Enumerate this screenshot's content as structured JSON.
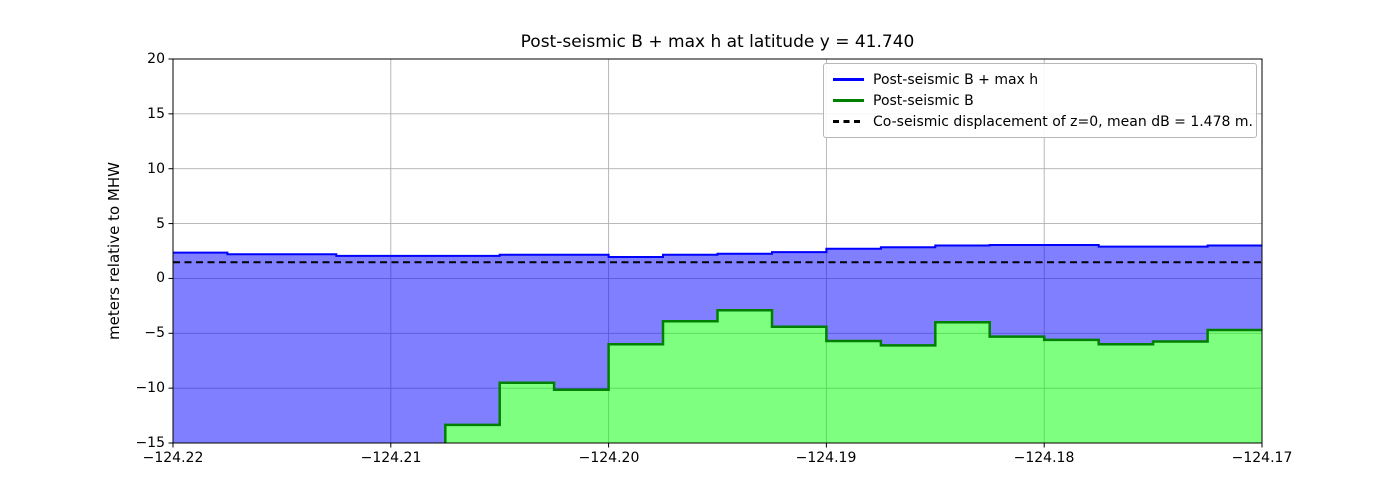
{
  "title": "Post-seismic B + max h at latitude y = 41.740",
  "ylabel": "meters relative to MHW",
  "axes": {
    "x_tick_labels": [
      "−124.22",
      "−124.21",
      "−124.20",
      "−124.19",
      "−124.18",
      "−124.17"
    ],
    "y_tick_labels": [
      "20",
      "15",
      "10",
      "5",
      "0",
      "−5",
      "−10",
      "−15"
    ]
  },
  "legend": {
    "items": [
      {
        "label": "Post-seismic B + max h",
        "color": "#0000ff",
        "style": "solid"
      },
      {
        "label": "Post-seismic B",
        "color": "#008000",
        "style": "solid"
      },
      {
        "label": "Co-seismic displacement of z=0, mean dB = 1.478 m.",
        "color": "#000000",
        "style": "dashed"
      }
    ]
  },
  "colors": {
    "blue_line": "#0000ff",
    "blue_fill": "rgba(0,0,255,0.5)",
    "green_line": "#008000",
    "green_fill": "rgba(0,255,0,0.5)",
    "dashed_line": "#000000",
    "grid": "#b0b0b0",
    "spine": "#000000"
  },
  "chart_data": {
    "type": "area",
    "title": "Post-seismic B + max h at latitude y = 41.740",
    "xlabel": "",
    "ylabel": "meters relative to MHW",
    "xlim": [
      -124.22,
      -124.17
    ],
    "ylim": [
      -15,
      20
    ],
    "x_ticks": [
      -124.22,
      -124.21,
      -124.2,
      -124.19,
      -124.18,
      -124.17
    ],
    "y_ticks": [
      20,
      15,
      10,
      5,
      0,
      -5,
      -10,
      -15
    ],
    "grid": true,
    "legend_position": "upper right",
    "step_bin_start": -124.22,
    "step_bin_width": 0.0025,
    "bin_left_edges": [
      -124.22,
      -124.2175,
      -124.215,
      -124.2125,
      -124.21,
      -124.2075,
      -124.205,
      -124.2025,
      -124.2,
      -124.1975,
      -124.195,
      -124.1925,
      -124.19,
      -124.1875,
      -124.185,
      -124.1825,
      -124.18,
      -124.1775,
      -124.175,
      -124.1725
    ],
    "series": [
      {
        "name": "Post-seismic B + max h",
        "render": "step-line-with-fill",
        "line_color": "#0000ff",
        "fill_color": "rgba(0,0,255,0.5)",
        "fill_down_to": "Post-seismic B",
        "values": [
          2.35,
          2.2,
          2.2,
          2.05,
          2.05,
          2.05,
          2.15,
          2.15,
          1.95,
          2.15,
          2.25,
          2.4,
          2.7,
          2.85,
          3.0,
          3.05,
          3.05,
          2.9,
          2.9,
          3.0
        ]
      },
      {
        "name": "Post-seismic B",
        "render": "step-line-with-fill",
        "line_color": "#008000",
        "fill_color": "rgba(0,255,0,0.5)",
        "fill_down_to": "bottom",
        "values": [
          null,
          null,
          null,
          null,
          null,
          -13.35,
          -9.5,
          -10.15,
          -6.0,
          -3.9,
          -2.9,
          -4.4,
          -5.7,
          -6.1,
          -4.0,
          -5.3,
          -5.6,
          -6.0,
          -5.75,
          -4.7
        ]
      },
      {
        "name": "Co-seismic displacement of z=0, mean dB = 1.478 m.",
        "render": "dashed-hline",
        "line_color": "#000000",
        "dash": [
          7,
          4.5
        ],
        "value": 1.478
      }
    ]
  }
}
